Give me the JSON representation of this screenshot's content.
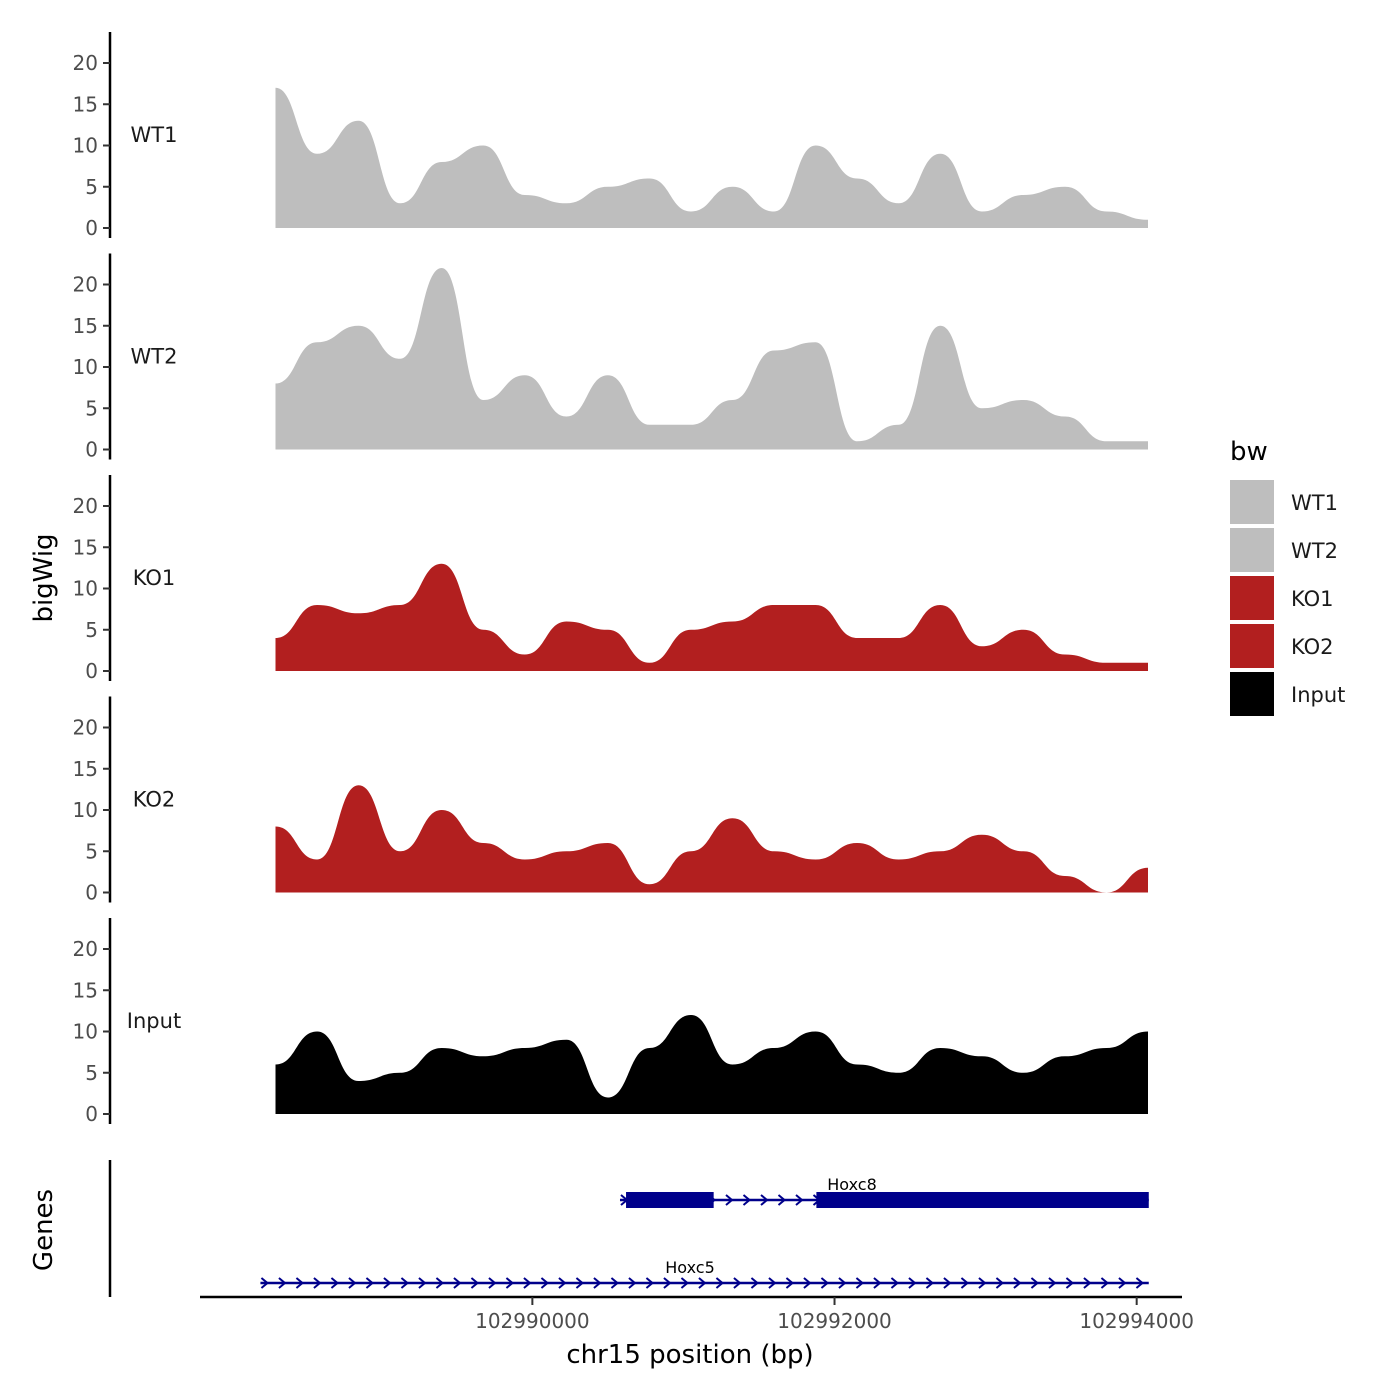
{
  "chart_data": {
    "type": "area",
    "xlabel": "chr15 position (bp)",
    "ylabel_tracks": "bigWig",
    "ylabel_genes": "Genes",
    "ylim": [
      0,
      24
    ],
    "yticks": [
      0,
      5,
      10,
      15,
      20
    ],
    "xlim": [
      102987800,
      102994300
    ],
    "xticks": [
      102990000,
      102992000,
      102994000
    ],
    "xtick_labels": [
      "102990000",
      "102992000",
      "102994000"
    ],
    "x": [
      102988300,
      102988575,
      102988850,
      102989125,
      102989400,
      102989675,
      102989950,
      102990225,
      102990500,
      102990775,
      102991050,
      102991325,
      102991600,
      102991875,
      102992150,
      102992425,
      102992700,
      102992975,
      102993250,
      102993525,
      102993800,
      102994075
    ],
    "series": [
      {
        "name": "WT1",
        "label": "WT1",
        "color": "#bebebe",
        "values": [
          17,
          9,
          13,
          3,
          8,
          10,
          4,
          3,
          5,
          6,
          2,
          5,
          2,
          10,
          6,
          3,
          9,
          2,
          4,
          5,
          2,
          1
        ]
      },
      {
        "name": "WT2",
        "label": "WT2",
        "color": "#bebebe",
        "values": [
          8,
          13,
          15,
          11,
          22,
          6,
          9,
          4,
          9,
          3,
          3,
          6,
          12,
          13,
          1,
          3,
          15,
          5,
          6,
          4,
          1,
          1
        ]
      },
      {
        "name": "KO1",
        "label": "KO1",
        "color": "#b21f1f",
        "values": [
          4,
          8,
          7,
          8,
          13,
          5,
          2,
          6,
          5,
          1,
          5,
          6,
          8,
          8,
          4,
          4,
          8,
          3,
          5,
          2,
          1,
          1
        ]
      },
      {
        "name": "KO2",
        "label": "KO2",
        "color": "#b21f1f",
        "values": [
          8,
          4,
          13,
          5,
          10,
          6,
          4,
          5,
          6,
          1,
          5,
          9,
          5,
          4,
          6,
          4,
          5,
          7,
          5,
          2,
          0,
          3
        ]
      },
      {
        "name": "Input",
        "label": "Input",
        "color": "#000000",
        "values": [
          6,
          10,
          4,
          5,
          8,
          7,
          8,
          9,
          2,
          8,
          12,
          6,
          8,
          10,
          6,
          5,
          8,
          7,
          5,
          7,
          8,
          10
        ]
      }
    ],
    "legend": {
      "title": "bw",
      "position": "right",
      "entries": [
        {
          "label": "WT1",
          "color": "#bebebe"
        },
        {
          "label": "WT2",
          "color": "#bebebe"
        },
        {
          "label": "KO1",
          "color": "#b21f1f"
        },
        {
          "label": "KO2",
          "color": "#b21f1f"
        },
        {
          "label": "Input",
          "color": "#000000"
        }
      ]
    },
    "genes": [
      {
        "name": "Hoxc8",
        "start": 102990580,
        "end": 102994080,
        "strand": "+",
        "exons": [
          [
            102990620,
            102991200
          ],
          [
            102991880,
            102994080
          ]
        ],
        "color": "#00008b"
      },
      {
        "name": "Hoxc5",
        "start": 102988200,
        "end": 102994080,
        "strand": "+",
        "exons": [],
        "color": "#00008b"
      }
    ]
  }
}
